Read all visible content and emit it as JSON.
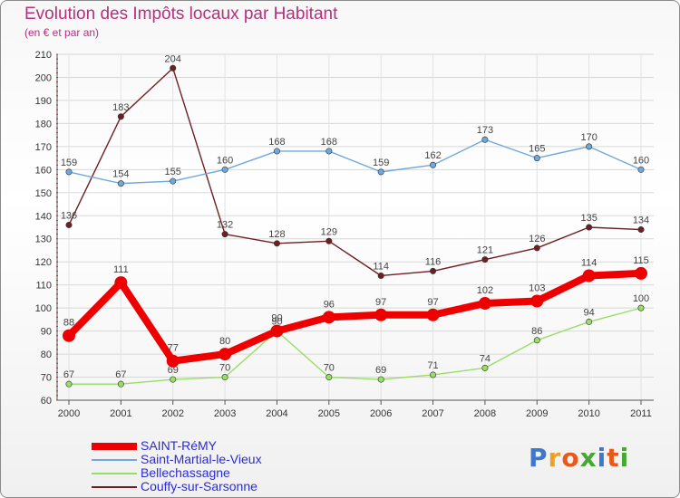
{
  "title": "Evolution des Impôts locaux par Habitant",
  "subtitle": "(en € et par an)",
  "logo_text": "Proxiti",
  "chart_data": {
    "type": "line",
    "title": "Evolution des Impôts locaux par Habitant",
    "subtitle": "(en € et par an)",
    "x": [
      "2000",
      "2001",
      "2002",
      "2003",
      "2004",
      "2005",
      "2006",
      "2007",
      "2008",
      "2009",
      "2010",
      "2011"
    ],
    "ylim": [
      60,
      210
    ],
    "yticks": [
      60,
      70,
      80,
      90,
      100,
      110,
      120,
      130,
      140,
      150,
      160,
      170,
      180,
      190,
      200,
      210
    ],
    "grid": true,
    "legend": "bottom-left",
    "series": [
      {
        "name": "Couffy-sur-Sarsonne",
        "color": "#6e1f24",
        "values": [
          136,
          183,
          204,
          132,
          128,
          129,
          114,
          116,
          121,
          126,
          135,
          134
        ]
      },
      {
        "name": "Saint-Martial-le-Vieux",
        "color": "#6fa8dc",
        "values": [
          159,
          154,
          155,
          160,
          168,
          168,
          159,
          162,
          173,
          165,
          170,
          160
        ]
      },
      {
        "name": "Bellechassagne",
        "color": "#99dd66",
        "values": [
          67,
          67,
          69,
          70,
          90,
          70,
          69,
          71,
          74,
          86,
          94,
          100
        ]
      },
      {
        "name": "SAINT-RéMY",
        "color": "#ee0000",
        "values": [
          88,
          111,
          77,
          80,
          90,
          96,
          97,
          97,
          102,
          103,
          114,
          115
        ]
      }
    ],
    "legend_order": [
      "SAINT-RéMY",
      "Saint-Martial-le-Vieux",
      "Bellechassagne",
      "Couffy-sur-Sarsonne"
    ]
  }
}
